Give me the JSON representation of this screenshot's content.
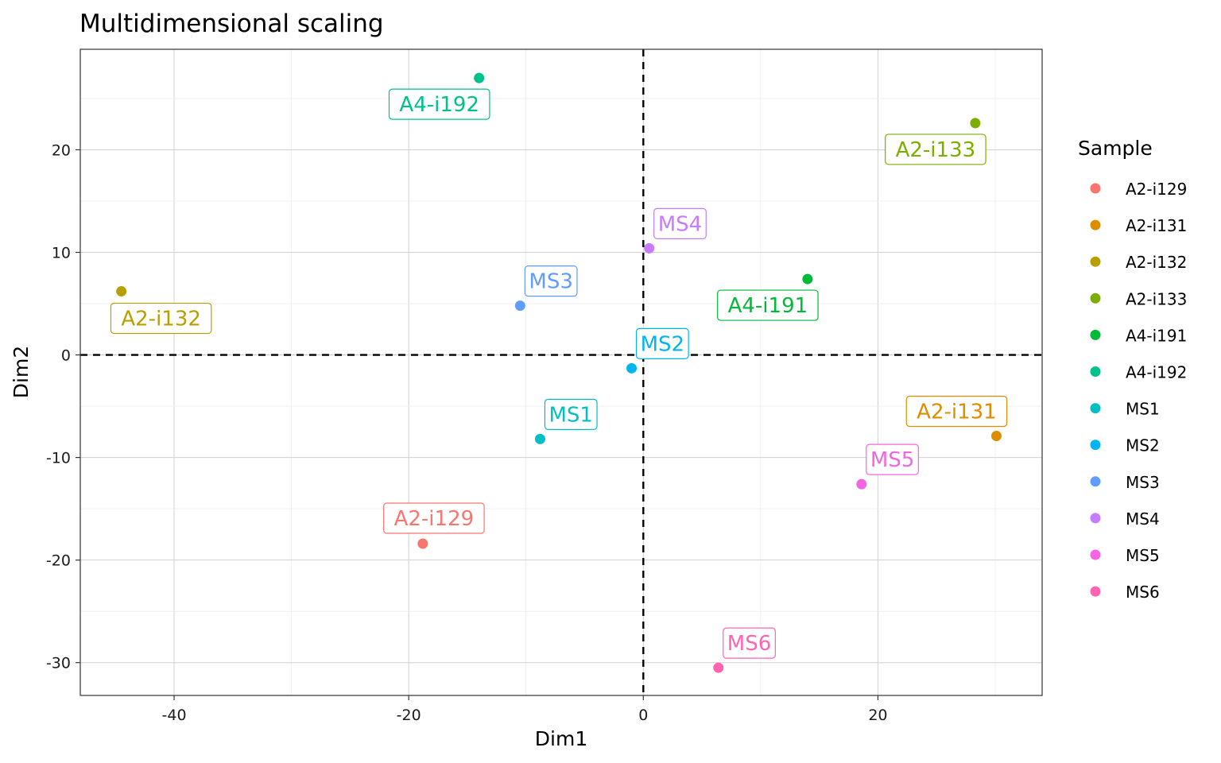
{
  "chart_data": {
    "type": "scatter",
    "title": "Multidimensional scaling",
    "xlabel": "Dim1",
    "ylabel": "Dim2",
    "xlim": [
      -48,
      34
    ],
    "ylim": [
      -33.2,
      29.8
    ],
    "x_ticks": [
      -40,
      -20,
      0,
      20
    ],
    "x_tick_labels": [
      "-40",
      "-20",
      "0",
      "20"
    ],
    "y_ticks": [
      -30,
      -20,
      -10,
      0,
      10,
      20
    ],
    "y_tick_labels": [
      "-30",
      "-20",
      "-10",
      "0",
      "10",
      "20"
    ],
    "reference_lines": {
      "x": 0,
      "y": 0,
      "style": "dashed"
    },
    "grid": true,
    "legend": {
      "title": "Sample",
      "position": "right"
    },
    "points": [
      {
        "name": "A2-i129",
        "x": -18.8,
        "y": -18.4,
        "color": "#F8766D",
        "label_pos": "above"
      },
      {
        "name": "A2-i131",
        "x": 30.1,
        "y": -7.9,
        "color": "#DE8C00",
        "label_pos": "above-left"
      },
      {
        "name": "A2-i132",
        "x": -44.5,
        "y": 6.2,
        "color": "#B79F00",
        "label_pos": "below"
      },
      {
        "name": "A2-i133",
        "x": 28.3,
        "y": 22.6,
        "color": "#7CAE00",
        "label_pos": "below-left"
      },
      {
        "name": "A4-i191",
        "x": 14.0,
        "y": 7.4,
        "color": "#00BA38",
        "label_pos": "below-left"
      },
      {
        "name": "A4-i192",
        "x": -14.0,
        "y": 27.0,
        "color": "#00C08B",
        "label_pos": "below-left"
      },
      {
        "name": "MS1",
        "x": -8.8,
        "y": -8.2,
        "color": "#00BFC4",
        "label_pos": "above-right"
      },
      {
        "name": "MS2",
        "x": -1.0,
        "y": -1.3,
        "color": "#00B4F0",
        "label_pos": "above-right"
      },
      {
        "name": "MS3",
        "x": -10.5,
        "y": 4.8,
        "color": "#619CFF",
        "label_pos": "above-right"
      },
      {
        "name": "MS4",
        "x": 0.5,
        "y": 10.4,
        "color": "#C77CFF",
        "label_pos": "above-right"
      },
      {
        "name": "MS5",
        "x": 18.6,
        "y": -12.6,
        "color": "#F564E3",
        "label_pos": "above-right"
      },
      {
        "name": "MS6",
        "x": 6.4,
        "y": -30.5,
        "color": "#FF64B0",
        "label_pos": "above-right"
      }
    ]
  }
}
